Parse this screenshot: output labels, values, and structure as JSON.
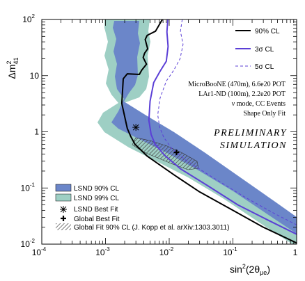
{
  "chart_data": {
    "type": "line",
    "x_axis": {
      "scale": "log",
      "range": [
        0.0001,
        1
      ],
      "ticks": [
        {
          "value": 0.0001,
          "base": "10",
          "exp": "-4"
        },
        {
          "value": 0.001,
          "base": "10",
          "exp": "-3"
        },
        {
          "value": 0.01,
          "base": "10",
          "exp": "-2"
        },
        {
          "value": 0.1,
          "base": "10",
          "exp": "-1"
        },
        {
          "value": 1,
          "base": "1",
          "exp": ""
        }
      ],
      "label_main": "sin",
      "label_sup": "2",
      "label_arg": "(2θ",
      "label_sub": "μe",
      "label_close": ")"
    },
    "y_axis": {
      "scale": "log",
      "range": [
        0.01,
        100
      ],
      "ticks": [
        {
          "value": 0.01,
          "base": "10",
          "exp": "-2"
        },
        {
          "value": 0.1,
          "base": "10",
          "exp": "-1"
        },
        {
          "value": 1,
          "base": "1",
          "exp": ""
        },
        {
          "value": 10,
          "base": "10",
          "exp": ""
        },
        {
          "value": 100,
          "base": "10",
          "exp": "2"
        }
      ],
      "label_main": "Δm",
      "label_sup": "2",
      "label_sub": "41"
    },
    "series": [
      {
        "name": "90% CL",
        "color": "#000000",
        "dash": "solid",
        "x": [
          0.0078,
          0.0061,
          0.0045,
          0.0042,
          0.0046,
          0.0041,
          0.0039,
          0.0044,
          0.0037,
          0.0034,
          0.0022,
          0.0019,
          0.0018,
          0.0022,
          0.0025,
          0.0029,
          0.0045,
          0.012,
          0.03,
          0.1,
          0.3,
          1.0
        ],
        "y": [
          100,
          62,
          52,
          44,
          30,
          25,
          21,
          16,
          12.5,
          10.5,
          10.8,
          8.8,
          3.2,
          1.15,
          0.82,
          0.6,
          0.37,
          0.17,
          0.085,
          0.04,
          0.02,
          0.0105
        ]
      },
      {
        "name": "3σ CL",
        "color": "#5b3fd6",
        "dash": "solid",
        "x": [
          0.0095,
          0.0092,
          0.0096,
          0.009,
          0.0072,
          0.0057,
          0.005,
          0.0048,
          0.0052,
          0.006,
          0.0085,
          0.015,
          0.04,
          0.12,
          0.35,
          1.0
        ],
        "y": [
          100,
          60,
          33,
          18,
          12,
          7.5,
          3.5,
          1.6,
          0.9,
          0.6,
          0.38,
          0.22,
          0.11,
          0.05,
          0.027,
          0.015
        ]
      },
      {
        "name": "5σ CL",
        "color": "#5b3fd6",
        "dash": "dashed",
        "x": [
          0.016,
          0.015,
          0.0165,
          0.0148,
          0.0118,
          0.009,
          0.0072,
          0.0066,
          0.0071,
          0.0082,
          0.011,
          0.019,
          0.05,
          0.15,
          0.45,
          1.0
        ],
        "y": [
          100,
          62,
          36,
          20,
          12.5,
          8,
          4,
          2.0,
          1.2,
          0.8,
          0.5,
          0.3,
          0.15,
          0.07,
          0.035,
          0.022
        ]
      }
    ],
    "regions": [
      {
        "name": "LSND 90% CL",
        "color": "#6b86c9"
      },
      {
        "name": "LSND 99% CL",
        "color": "#9ecfc4"
      }
    ],
    "points": [
      {
        "name": "LSND Best Fit",
        "x": 0.003,
        "y": 1.2,
        "marker": "star"
      },
      {
        "name": "Global Best Fit",
        "x": 0.013,
        "y": 0.43,
        "marker": "cross"
      }
    ],
    "hatched_region": {
      "name": "Global Fit 90% CL (J. Kopp et al. arXiv:1303.3011)"
    },
    "info_text": [
      "MicroBooNE (470m), 6.6e20 POT",
      "LAr1-ND (100m), 2.2e20 POT",
      "ν mode, CC Events",
      "Shape Only Fit"
    ],
    "watermark": [
      "PRELIMINARY",
      "SIMULATION"
    ],
    "line_legend_position": "top-right",
    "region_legend_position": "bottom-left",
    "grid": false
  }
}
